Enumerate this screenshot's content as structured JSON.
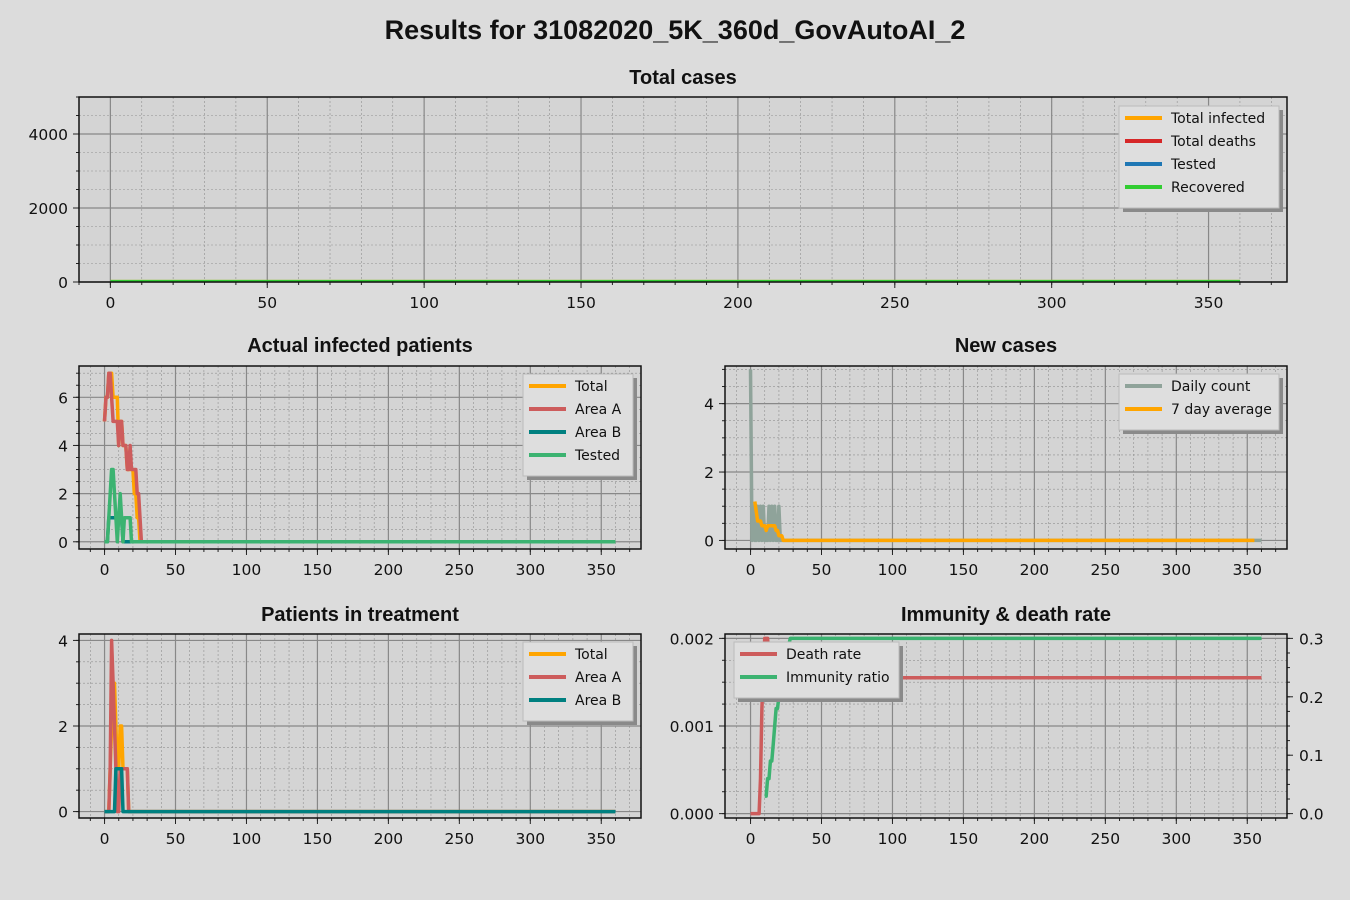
{
  "figure_title": "Results for 31082020_5K_360d_GovAutoAI_2",
  "chart_data": [
    {
      "id": "total",
      "type": "line",
      "title": "Total cases",
      "xlim": [
        -10,
        375
      ],
      "ylim": [
        0,
        5000
      ],
      "xticks": [
        0,
        50,
        100,
        150,
        200,
        250,
        300,
        350
      ],
      "yticks": [
        0,
        2000,
        4000
      ],
      "legend_loc": "top-right",
      "series": [
        {
          "name": "Total infected",
          "color": "#ffa500",
          "x": [
            0,
            360
          ],
          "y": [
            12,
            12
          ]
        },
        {
          "name": "Total deaths",
          "color": "#d62728",
          "x": [
            0,
            360
          ],
          "y": [
            0,
            0
          ]
        },
        {
          "name": "Tested",
          "color": "#1f77b4",
          "x": [
            0,
            360
          ],
          "y": [
            5,
            5
          ]
        },
        {
          "name": "Recovered",
          "color": "#32cd32",
          "x": [
            0,
            360
          ],
          "y": [
            12,
            12
          ]
        }
      ]
    },
    {
      "id": "actual",
      "type": "line",
      "title": "Actual infected patients",
      "xlim": [
        -18,
        378
      ],
      "ylim": [
        -0.3,
        7.3
      ],
      "xticks": [
        0,
        50,
        100,
        150,
        200,
        250,
        300,
        350
      ],
      "yticks": [
        0,
        2,
        4,
        6
      ],
      "legend_loc": "top-right",
      "series": [
        {
          "name": "Total",
          "color": "#ffa500",
          "x": [
            0,
            1,
            2,
            3,
            4,
            5,
            6,
            7,
            8,
            9,
            10,
            11,
            12,
            13,
            14,
            15,
            16,
            17,
            18,
            19,
            20,
            21,
            22,
            23,
            24,
            25,
            26,
            27,
            360
          ],
          "y": [
            5,
            6,
            6,
            7,
            7,
            7,
            6,
            6,
            6,
            6,
            4,
            5,
            5,
            4,
            4,
            4,
            3,
            3,
            3,
            3,
            3,
            2,
            2,
            1,
            1,
            0,
            0,
            0,
            0
          ]
        },
        {
          "name": "Area A",
          "color": "#cd5c5c",
          "x": [
            0,
            1,
            2,
            3,
            4,
            5,
            6,
            7,
            8,
            9,
            10,
            11,
            12,
            13,
            14,
            15,
            16,
            17,
            18,
            19,
            20,
            21,
            22,
            23,
            24,
            25,
            26,
            27,
            360
          ],
          "y": [
            5,
            6,
            6,
            7,
            7,
            6,
            5,
            5,
            5,
            5,
            4,
            5,
            5,
            4,
            4,
            4,
            3,
            3,
            4,
            3,
            3,
            3,
            3,
            2,
            2,
            1,
            0,
            0,
            0
          ]
        },
        {
          "name": "Area B",
          "color": "#008080",
          "x": [
            0,
            2,
            3,
            4,
            5,
            6,
            7,
            8,
            9,
            10,
            11,
            12,
            13,
            14,
            360
          ],
          "y": [
            0,
            0,
            1,
            1,
            1,
            1,
            1,
            1,
            1,
            1,
            1,
            1,
            0,
            0,
            0
          ]
        },
        {
          "name": "Tested",
          "color": "#3cb371",
          "x": [
            0,
            1,
            2,
            3,
            4,
            5,
            6,
            7,
            8,
            9,
            10,
            11,
            12,
            13,
            14,
            15,
            16,
            17,
            18,
            19,
            20,
            360
          ],
          "y": [
            0,
            0,
            0,
            1,
            2,
            3,
            3,
            2,
            1,
            0,
            1,
            2,
            1,
            0,
            1,
            1,
            1,
            1,
            1,
            0,
            0,
            0
          ]
        }
      ]
    },
    {
      "id": "new",
      "type": "line",
      "title": "New cases",
      "xlim": [
        -18,
        378
      ],
      "ylim": [
        -0.25,
        5.1
      ],
      "xticks": [
        0,
        50,
        100,
        150,
        200,
        250,
        300,
        350
      ],
      "yticks": [
        0,
        2,
        4
      ],
      "legend_loc": "top-right",
      "series": [
        {
          "name": "Daily count",
          "color": "#8fa39a",
          "x": [
            0,
            1,
            2,
            3,
            4,
            5,
            6,
            7,
            8,
            9,
            10,
            11,
            12,
            13,
            14,
            15,
            16,
            17,
            18,
            19,
            20,
            21,
            22,
            360
          ],
          "y": [
            5,
            0,
            1,
            0,
            0,
            1,
            0,
            1,
            0,
            1,
            0,
            0,
            0,
            1,
            0,
            1,
            0,
            1,
            0,
            0,
            1,
            0,
            0,
            0
          ]
        },
        {
          "name": "7 day average",
          "color": "#ffa500",
          "x": [
            3,
            4,
            5,
            6,
            7,
            8,
            9,
            10,
            11,
            12,
            13,
            14,
            15,
            16,
            17,
            18,
            19,
            20,
            21,
            22,
            23,
            24,
            25,
            355
          ],
          "y": [
            1.14,
            0.86,
            0.57,
            0.57,
            0.57,
            0.43,
            0.43,
            0.43,
            0.29,
            0.43,
            0.43,
            0.43,
            0.43,
            0.43,
            0.43,
            0.29,
            0.29,
            0.14,
            0.14,
            0.14,
            0,
            0,
            0,
            0
          ]
        }
      ]
    },
    {
      "id": "treat",
      "type": "line",
      "title": "Patients in treatment",
      "xlim": [
        -18,
        378
      ],
      "ylim": [
        -0.15,
        4.15
      ],
      "xticks": [
        0,
        50,
        100,
        150,
        200,
        250,
        300,
        350
      ],
      "yticks": [
        0,
        2,
        4
      ],
      "legend_loc": "top-right",
      "series": [
        {
          "name": "Total",
          "color": "#ffa500",
          "x": [
            0,
            2,
            3,
            4,
            5,
            6,
            7,
            8,
            9,
            10,
            11,
            12,
            13,
            14,
            15,
            16,
            17,
            18,
            19,
            360
          ],
          "y": [
            0,
            0,
            0,
            1,
            2,
            3,
            3,
            2,
            1,
            1,
            2,
            2,
            1,
            1,
            1,
            1,
            0,
            0,
            0,
            0
          ]
        },
        {
          "name": "Area A",
          "color": "#cd5c5c",
          "x": [
            0,
            2,
            3,
            4,
            5,
            6,
            7,
            8,
            9,
            10,
            11,
            12,
            13,
            14,
            15,
            16,
            17,
            18,
            360
          ],
          "y": [
            0,
            0,
            0,
            1,
            4,
            3,
            2,
            1,
            0,
            0,
            1,
            1,
            1,
            1,
            1,
            1,
            0,
            0,
            0
          ]
        },
        {
          "name": "Area B",
          "color": "#008080",
          "x": [
            0,
            5,
            6,
            7,
            8,
            9,
            10,
            11,
            12,
            13,
            14,
            360
          ],
          "y": [
            0,
            0,
            0,
            0,
            1,
            1,
            1,
            1,
            1,
            0,
            0,
            0
          ]
        }
      ]
    },
    {
      "id": "immunity",
      "type": "line",
      "title": "Immunity & death rate",
      "xlim": [
        -18,
        378
      ],
      "ylim": [
        -5e-05,
        0.00205
      ],
      "y2lim": [
        -0.0075,
        0.3075
      ],
      "xticks": [
        0,
        50,
        100,
        150,
        200,
        250,
        300,
        350
      ],
      "yticks": [
        0,
        0.001,
        0.002
      ],
      "ytick_labels": [
        "0.000",
        "0.001",
        "0.002"
      ],
      "y2ticks": [
        0,
        0.1,
        0.2,
        0.3
      ],
      "y2tick_labels": [
        "0.0",
        "0.1",
        "0.2",
        "0.3"
      ],
      "legend_loc": "top-left",
      "series": [
        {
          "name": "Death rate",
          "color": "#cd5c5c",
          "axis": "left",
          "x": [
            0,
            6,
            7,
            8,
            9,
            10,
            11,
            12,
            13,
            14,
            15,
            16,
            17,
            18,
            19,
            20,
            21,
            22,
            23,
            24,
            25,
            360
          ],
          "y": [
            0,
            0,
            0.0004,
            0.0012,
            0.0016,
            0.002,
            0.002,
            0.002,
            0.0017,
            0.0017,
            0.0017,
            0.0017,
            0.0016,
            0.0016,
            0.0016,
            0.0016,
            0.00155,
            0.00155,
            0.00155,
            0.00155,
            0.00155,
            0.00155
          ]
        },
        {
          "name": "Immunity ratio",
          "color": "#3cb371",
          "axis": "right",
          "x": [
            10,
            11,
            12,
            13,
            14,
            15,
            16,
            17,
            18,
            19,
            20,
            21,
            22,
            23,
            24,
            25,
            26,
            27,
            28,
            29,
            30,
            360
          ],
          "y": [
            0.03,
            0.03,
            0.06,
            0.06,
            0.09,
            0.09,
            0.12,
            0.15,
            0.18,
            0.18,
            0.2,
            0.2,
            0.2,
            0.23,
            0.26,
            0.26,
            0.29,
            0.29,
            0.3,
            0.3,
            0.3,
            0.3
          ]
        }
      ]
    }
  ]
}
